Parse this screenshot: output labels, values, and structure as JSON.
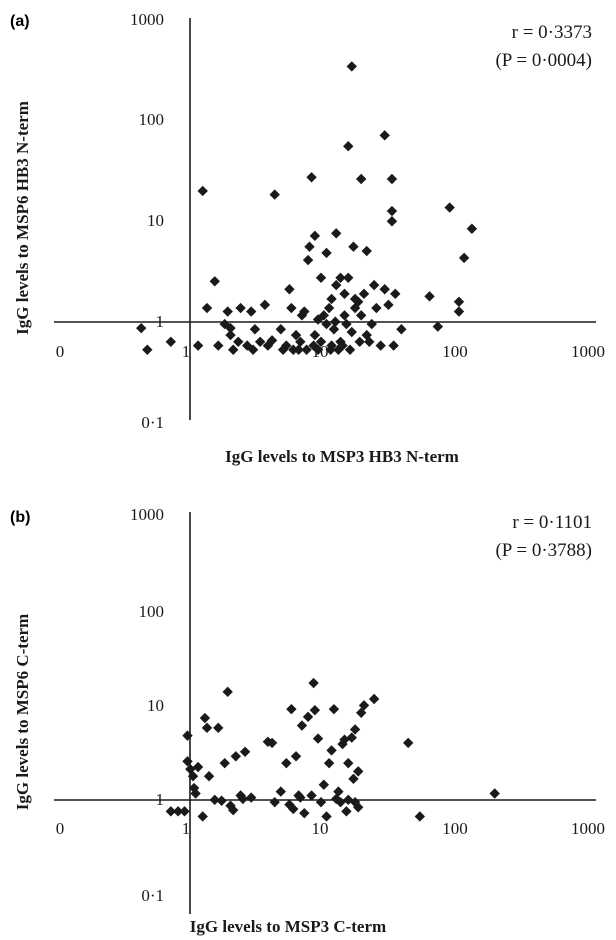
{
  "chart_data": [
    {
      "panel": "(a)",
      "type": "scatter",
      "xlabel": "IgG levels to MSP3 HB3 N-term",
      "ylabel": "IgG levels to MSP6 HB3 N-term",
      "xscale": "log",
      "yscale": "log",
      "xlim": [
        0.1,
        1000
      ],
      "ylim": [
        0.1,
        1000
      ],
      "x_ticks": [
        "0",
        "1",
        "10",
        "100",
        "1000"
      ],
      "y_ticks": [
        "0·1",
        "1",
        "10",
        "100",
        "1000"
      ],
      "stat_r": "r = 0·3373",
      "stat_p": "(P = 0·0004)",
      "grid": false,
      "points": [
        [
          0.45,
          0.82
        ],
        [
          0.5,
          0.5
        ],
        [
          1.3,
          19
        ],
        [
          1.4,
          1.3
        ],
        [
          1.6,
          2.4
        ],
        [
          1.7,
          0.55
        ],
        [
          1.9,
          0.9
        ],
        [
          2.0,
          1.2
        ],
        [
          2.1,
          0.82
        ],
        [
          2.1,
          0.7
        ],
        [
          2.2,
          0.5
        ],
        [
          2.5,
          1.3
        ],
        [
          2.8,
          0.55
        ],
        [
          3.0,
          1.2
        ],
        [
          3.2,
          0.8
        ],
        [
          3.5,
          0.6
        ],
        [
          3.8,
          1.4
        ],
        [
          4.0,
          0.55
        ],
        [
          4.3,
          0.62
        ],
        [
          4.5,
          17.5
        ],
        [
          5.0,
          0.8
        ],
        [
          5.5,
          0.55
        ],
        [
          5.8,
          2.0
        ],
        [
          6.0,
          1.3
        ],
        [
          6.5,
          0.7
        ],
        [
          7.0,
          0.6
        ],
        [
          7.2,
          1.1
        ],
        [
          7.5,
          1.2
        ],
        [
          8.0,
          3.9
        ],
        [
          8.2,
          5.3
        ],
        [
          8.5,
          26
        ],
        [
          9.0,
          6.8
        ],
        [
          9.0,
          0.7
        ],
        [
          10,
          0.6
        ],
        [
          10,
          2.6
        ],
        [
          10.5,
          1.1
        ],
        [
          11,
          0.9
        ],
        [
          11,
          4.6
        ],
        [
          11.5,
          1.3
        ],
        [
          12,
          0.55
        ],
        [
          12,
          1.6
        ],
        [
          12.5,
          0.8
        ],
        [
          13,
          2.2
        ],
        [
          13,
          7.2
        ],
        [
          14,
          2.6
        ],
        [
          14,
          0.6
        ],
        [
          15,
          1.1
        ],
        [
          15,
          1.8
        ],
        [
          16,
          53
        ],
        [
          16,
          2.6
        ],
        [
          17,
          330
        ],
        [
          17,
          0.75
        ],
        [
          17.5,
          5.3
        ],
        [
          18,
          1.3
        ],
        [
          18,
          1.6
        ],
        [
          19,
          1.5
        ],
        [
          20,
          25
        ],
        [
          20,
          1.1
        ],
        [
          21,
          1.8
        ],
        [
          22,
          4.8
        ],
        [
          22,
          0.7
        ],
        [
          25,
          2.2
        ],
        [
          26,
          1.3
        ],
        [
          28,
          0.55
        ],
        [
          30,
          68
        ],
        [
          30,
          2.0
        ],
        [
          32,
          1.4
        ],
        [
          34,
          25
        ],
        [
          34,
          12
        ],
        [
          34,
          9.5
        ],
        [
          35,
          0.55
        ],
        [
          36,
          1.8
        ],
        [
          40,
          0.8
        ],
        [
          65,
          1.7
        ],
        [
          75,
          0.85
        ],
        [
          92,
          13
        ],
        [
          108,
          1.5
        ],
        [
          108,
          1.2
        ],
        [
          118,
          4.1
        ],
        [
          135,
          8.0
        ],
        [
          0.75,
          0.6
        ],
        [
          1.2,
          0.55
        ],
        [
          2.4,
          0.6
        ],
        [
          3.1,
          0.5
        ],
        [
          5.2,
          0.5
        ],
        [
          6.2,
          0.5
        ],
        [
          6.8,
          0.5
        ],
        [
          7.8,
          0.5
        ],
        [
          8.8,
          0.55
        ],
        [
          9.5,
          0.5
        ],
        [
          11.8,
          0.5
        ],
        [
          13.5,
          0.5
        ],
        [
          14.5,
          0.55
        ],
        [
          16.5,
          0.5
        ],
        [
          19.5,
          0.6
        ],
        [
          23,
          0.6
        ],
        [
          9.5,
          1.0
        ],
        [
          12.8,
          0.95
        ],
        [
          15.5,
          0.9
        ],
        [
          24,
          0.9
        ]
      ]
    },
    {
      "panel": "(b)",
      "type": "scatter",
      "xlabel": "IgG levels to MSP3 C-term",
      "ylabel": "IgG levels to MSP6 C-term",
      "xscale": "log",
      "yscale": "log",
      "xlim": [
        0.1,
        1000
      ],
      "ylim": [
        0.1,
        1000
      ],
      "x_ticks": [
        "0",
        "1",
        "10",
        "100",
        "1000"
      ],
      "y_ticks": [
        "0·1",
        "1",
        "10",
        "100",
        "1000"
      ],
      "stat_r": "r = 0·1101",
      "stat_p": "(P = 0·3788)",
      "grid": false,
      "points": [
        [
          0.75,
          0.68
        ],
        [
          0.85,
          0.68
        ],
        [
          0.95,
          0.68
        ],
        [
          1.0,
          4.3
        ],
        [
          1.0,
          2.3
        ],
        [
          1.05,
          1.9
        ],
        [
          1.1,
          1.6
        ],
        [
          1.12,
          1.2
        ],
        [
          1.15,
          1.05
        ],
        [
          1.2,
          2.0
        ],
        [
          1.3,
          0.6
        ],
        [
          1.35,
          6.6
        ],
        [
          1.4,
          5.2
        ],
        [
          1.45,
          1.6
        ],
        [
          1.6,
          0.9
        ],
        [
          1.7,
          5.2
        ],
        [
          1.8,
          0.88
        ],
        [
          1.9,
          2.2
        ],
        [
          2.0,
          12.5
        ],
        [
          2.1,
          0.78
        ],
        [
          2.2,
          0.7
        ],
        [
          2.3,
          2.6
        ],
        [
          2.5,
          1.0
        ],
        [
          2.6,
          0.92
        ],
        [
          2.7,
          2.9
        ],
        [
          4.0,
          3.7
        ],
        [
          4.3,
          3.6
        ],
        [
          4.5,
          0.85
        ],
        [
          5.0,
          1.1
        ],
        [
          5.5,
          2.2
        ],
        [
          6.0,
          8.2
        ],
        [
          6.2,
          0.72
        ],
        [
          6.5,
          2.6
        ],
        [
          6.8,
          1.0
        ],
        [
          7.0,
          0.95
        ],
        [
          7.2,
          5.5
        ],
        [
          7.5,
          0.65
        ],
        [
          8.0,
          6.8
        ],
        [
          8.5,
          1.0
        ],
        [
          8.8,
          15.5
        ],
        [
          9.0,
          8.0
        ],
        [
          9.5,
          4.0
        ],
        [
          10,
          0.85
        ],
        [
          10.5,
          1.3
        ],
        [
          11,
          0.6
        ],
        [
          11.5,
          2.2
        ],
        [
          12,
          3.0
        ],
        [
          12.5,
          8.2
        ],
        [
          13,
          0.92
        ],
        [
          14,
          0.85
        ],
        [
          14.5,
          3.5
        ],
        [
          15,
          3.9
        ],
        [
          15.5,
          0.68
        ],
        [
          16,
          0.9
        ],
        [
          16,
          2.2
        ],
        [
          17,
          4.1
        ],
        [
          17.5,
          1.5
        ],
        [
          18,
          0.85
        ],
        [
          18,
          5.0
        ],
        [
          19,
          0.75
        ],
        [
          19,
          1.8
        ],
        [
          20,
          7.5
        ],
        [
          21,
          9.0
        ],
        [
          25,
          10.5
        ],
        [
          45,
          3.6
        ],
        [
          55,
          0.6
        ],
        [
          200,
          1.05
        ],
        [
          3.0,
          0.95
        ],
        [
          5.8,
          0.8
        ],
        [
          13.5,
          1.1
        ]
      ]
    }
  ]
}
